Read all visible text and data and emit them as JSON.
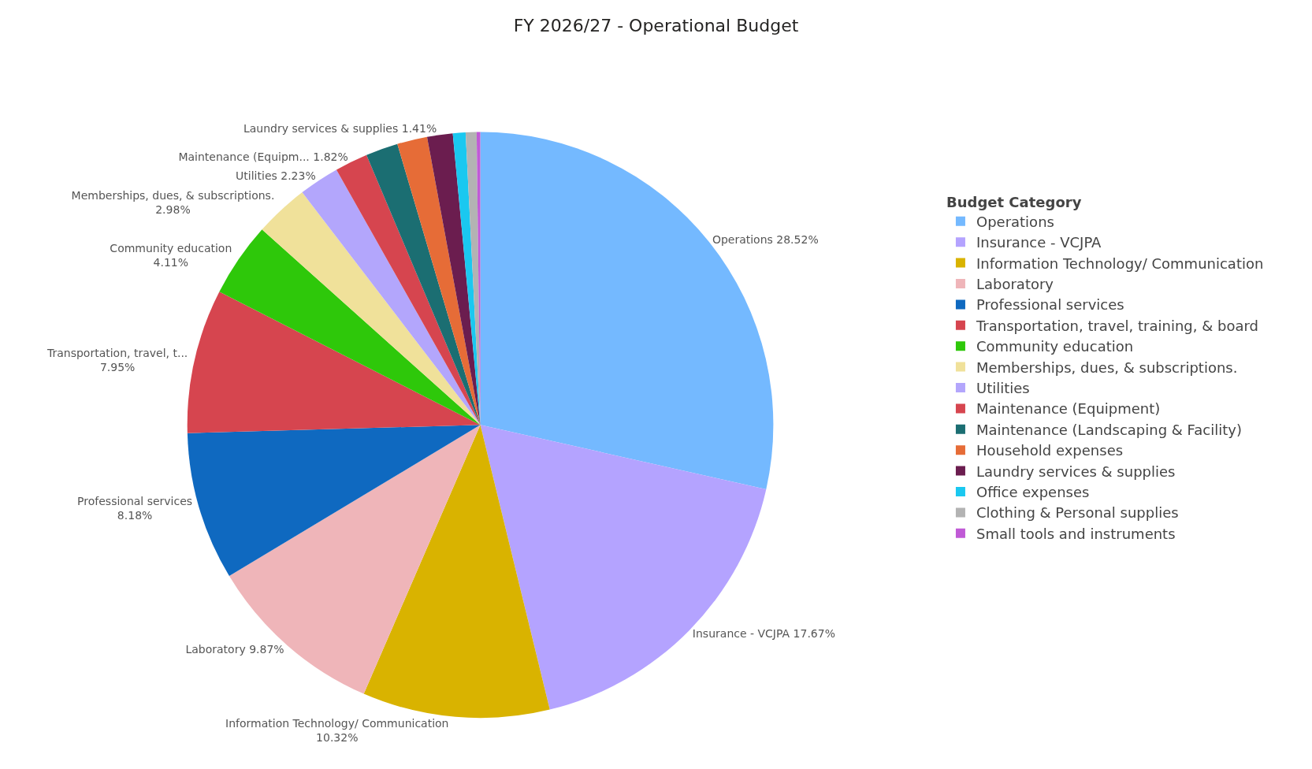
{
  "chart_data": {
    "type": "pie",
    "title": "FY 2026/27 - Operational Budget",
    "legend_title": "Budget Category",
    "legend": "right",
    "categories": [
      "Operations",
      "Insurance - VCJPA",
      "Information Technology/ Communication",
      "Laboratory",
      "Professional services",
      "Transportation, travel, training, & board",
      "Community education",
      "Memberships, dues, & subscriptions.",
      "Utilities",
      "Maintenance (Equipment)",
      "Maintenance (Landscaping & Facility)",
      "Household expenses",
      "Laundry services & supplies",
      "Office expenses",
      "Clothing & Personal supplies",
      "Small tools and instruments"
    ],
    "values": [
      28.52,
      17.67,
      10.32,
      9.87,
      8.18,
      7.95,
      4.11,
      2.98,
      2.23,
      1.82,
      1.78,
      1.66,
      1.41,
      0.7,
      0.6,
      0.2
    ],
    "colors": [
      "#74b9ff",
      "#b4a3ff",
      "#d9b300",
      "#efb5b9",
      "#0f69c0",
      "#d6454f",
      "#2ec80a",
      "#f0e19a",
      "#b3a6fc",
      "#d6454f",
      "#1b6e72",
      "#e66c37",
      "#6b1d4f",
      "#1ac8f0",
      "#b3b3b3",
      "#c05ad6"
    ],
    "value_labels": [
      "Operations 28.52%",
      "Insurance - VCJPA 17.67%",
      "Information Technology/ Communication\n10.32%",
      "Laboratory 9.87%",
      "Professional services\n8.18%",
      "Transportation, travel, t...\n7.95%",
      "Community education\n4.11%",
      "Memberships, dues, & subscriptions.\n2.98%",
      "Utilities 2.23%",
      "Maintenance (Equipm... 1.82%",
      null,
      null,
      "Laundry services & supplies 1.41%",
      null,
      null,
      null
    ]
  }
}
